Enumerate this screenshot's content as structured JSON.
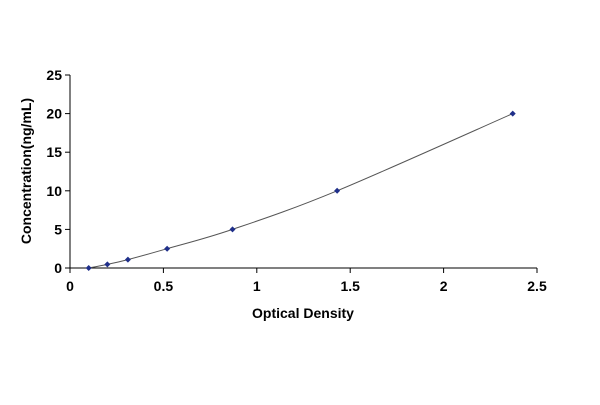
{
  "chart_data": {
    "type": "scatter",
    "title": "",
    "xlabel": "Optical Density",
    "ylabel": "Concentration(ng/mL)",
    "xlim": [
      0,
      2.5
    ],
    "ylim": [
      0,
      25
    ],
    "x_ticks": [
      "0",
      "0.5",
      "1",
      "1.5",
      "2",
      "2.5"
    ],
    "y_ticks": [
      "0",
      "5",
      "10",
      "15",
      "20",
      "25"
    ],
    "grid": false,
    "legend": "none",
    "points": [
      {
        "x": 0.1,
        "y": 0.0
      },
      {
        "x": 0.2,
        "y": 0.47
      },
      {
        "x": 0.31,
        "y": 1.09
      },
      {
        "x": 0.52,
        "y": 2.5
      },
      {
        "x": 0.87,
        "y": 5.0
      },
      {
        "x": 1.43,
        "y": 10.0
      },
      {
        "x": 2.37,
        "y": 20.0
      }
    ],
    "fit_curve": true,
    "colors": {
      "point": "#1f2f8a",
      "line": "#555555",
      "axis": "#000000"
    }
  }
}
